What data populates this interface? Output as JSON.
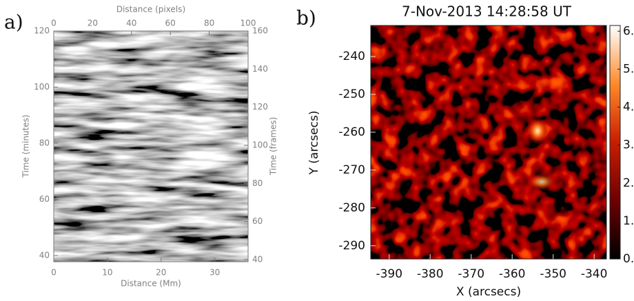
{
  "chart_data": [
    {
      "type": "image",
      "panel_label": "a)",
      "xlabel": "Distance (Mm)",
      "xlim": [
        0,
        36.2
      ],
      "xticks": [
        0,
        10,
        20,
        30
      ],
      "x2label": "Distance (pixels)",
      "x2lim": [
        0,
        100
      ],
      "x2ticks": [
        0,
        20,
        40,
        60,
        80,
        100
      ],
      "ylabel": "Time (minutes)",
      "ylim": [
        37.8,
        120
      ],
      "yticks": [
        40,
        60,
        80,
        100,
        120
      ],
      "y2label": "Time (frames)",
      "y2lim": [
        38.9,
        160
      ],
      "y2ticks": [
        40,
        60,
        80,
        100,
        120,
        140,
        160
      ]
    },
    {
      "type": "image",
      "panel_label": "b)",
      "title": "7-Nov-2013 14:28:58 UT",
      "xlabel": "X (arcsecs)",
      "xlim": [
        -394.5,
        -337
      ],
      "xticks": [
        -390,
        -380,
        -370,
        -360,
        -350,
        -340
      ],
      "ylabel": "Y (arcsecs)",
      "ylim": [
        -293.5,
        -231.8
      ],
      "yticks": [
        -290,
        -280,
        -270,
        -260,
        -250,
        -240
      ],
      "clim": [
        0,
        6.15
      ],
      "cticks": [
        {
          "value": 6,
          "label": "6."
        },
        {
          "value": 5,
          "label": "5."
        },
        {
          "value": 4,
          "label": "4."
        },
        {
          "value": 3,
          "label": "3."
        },
        {
          "value": 2,
          "label": "2."
        },
        {
          "value": 1,
          "label": "1."
        },
        {
          "value": 0,
          "label": "0."
        }
      ],
      "colormap": [
        "#000000",
        "#6e0000",
        "#c81e00",
        "#ff8a2a",
        "#ffffff"
      ]
    }
  ]
}
